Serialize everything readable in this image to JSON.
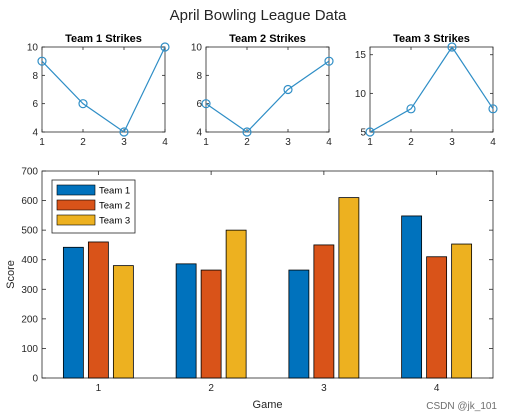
{
  "figure": {
    "title": "April Bowling League Data",
    "watermark": "CSDN @jk_101"
  },
  "chart_data": [
    {
      "type": "line",
      "title": "Team 1 Strikes",
      "x": [
        1,
        2,
        3,
        4
      ],
      "y": [
        9,
        6,
        4,
        10
      ],
      "xlim": [
        1,
        4
      ],
      "ylim": [
        4,
        10
      ],
      "xticks": [
        "1",
        "2",
        "3",
        "4"
      ],
      "yticks": [
        "4",
        "6",
        "8",
        "10"
      ],
      "marker": "circle",
      "color": "#2f8ec6",
      "grid": false
    },
    {
      "type": "line",
      "title": "Team 2 Strikes",
      "x": [
        1,
        2,
        3,
        4
      ],
      "y": [
        6,
        4,
        7,
        9
      ],
      "xlim": [
        1,
        4
      ],
      "ylim": [
        4,
        10
      ],
      "xticks": [
        "1",
        "2",
        "3",
        "4"
      ],
      "yticks": [
        "4",
        "6",
        "8",
        "10"
      ],
      "marker": "circle",
      "color": "#2f8ec6",
      "grid": false
    },
    {
      "type": "line",
      "title": "Team 3 Strikes",
      "x": [
        1,
        2,
        3,
        4
      ],
      "y": [
        5,
        8,
        16,
        8
      ],
      "xlim": [
        1,
        4
      ],
      "ylim": [
        5,
        16
      ],
      "xticks": [
        "1",
        "2",
        "3",
        "4"
      ],
      "yticks": [
        "5",
        "10",
        "15"
      ],
      "marker": "circle",
      "color": "#2f8ec6",
      "grid": false
    },
    {
      "type": "bar",
      "title": "",
      "xlabel": "Game",
      "ylabel": "Score",
      "categories": [
        "1",
        "2",
        "3",
        "4"
      ],
      "ylim": [
        0,
        700
      ],
      "yticks": [
        "0",
        "100",
        "200",
        "300",
        "400",
        "500",
        "600",
        "700"
      ],
      "legend": "top-left",
      "grid": false,
      "series": [
        {
          "name": "Team 1",
          "color": "#0072bd",
          "values": [
            442,
            386,
            365,
            548
          ]
        },
        {
          "name": "Team 2",
          "color": "#d95319",
          "values": [
            460,
            365,
            450,
            410
          ]
        },
        {
          "name": "Team 3",
          "color": "#edb120",
          "values": [
            380,
            500,
            610,
            453
          ]
        }
      ]
    }
  ]
}
